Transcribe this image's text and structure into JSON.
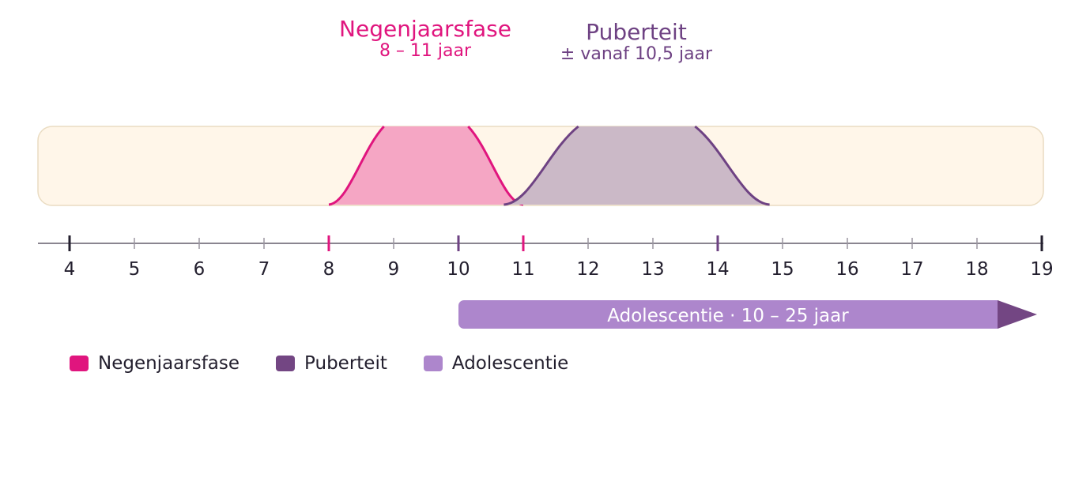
{
  "phases": {
    "negenjaarsfase": {
      "title": "Negenjaarsfase",
      "subtitle": "8 – 11 jaar",
      "start": 8,
      "end": 11,
      "peak_start": 8.85,
      "peak_end": 10.15,
      "color": "#e0157e",
      "fill": "#f5a6c4"
    },
    "puberteit": {
      "title": "Puberteit",
      "subtitle": "± vanaf 10,5 jaar",
      "start": 10.7,
      "end": 14.8,
      "peak_start": 11.85,
      "peak_end": 13.65,
      "color": "#6e4283",
      "fill": "#cbb9c7"
    }
  },
  "adolescentie": {
    "label": "Adolescentie · 10 – 25 jaar",
    "start": 10,
    "color": "#ad86cc",
    "arrow_color": "#734683"
  },
  "axis": {
    "min": 4,
    "max": 19,
    "ticks": [
      "4",
      "5",
      "6",
      "7",
      "8",
      "9",
      "10",
      "11",
      "12",
      "13",
      "14",
      "15",
      "16",
      "17",
      "18",
      "19"
    ],
    "major_marks": [
      {
        "value": 4,
        "color": "#231f2e"
      },
      {
        "value": 8,
        "color": "#e0157e"
      },
      {
        "value": 10,
        "color": "#6e4283"
      },
      {
        "value": 11,
        "color": "#e0157e"
      },
      {
        "value": 14,
        "color": "#6e4283"
      },
      {
        "value": 19,
        "color": "#231f2e"
      }
    ]
  },
  "band_color": "#fff6e9",
  "legend": [
    {
      "label": "Negenjaarsfase",
      "color": "#e0157e"
    },
    {
      "label": "Puberteit",
      "color": "#734683"
    },
    {
      "label": "Adolescentie",
      "color": "#ad86cc"
    }
  ]
}
